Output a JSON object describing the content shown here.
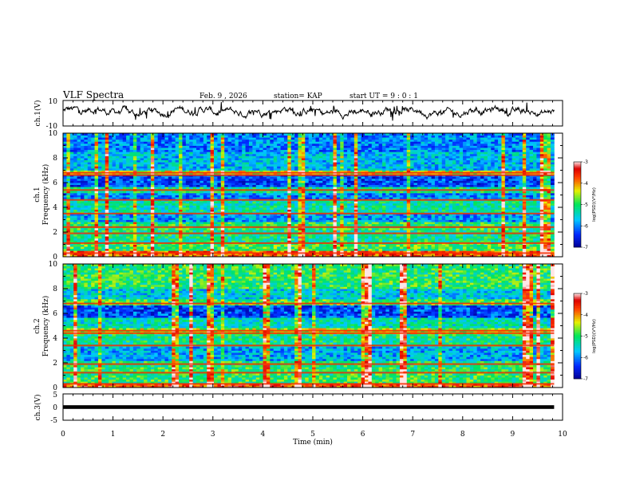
{
  "header": {
    "title": "VLF Spectra",
    "date": "Feb. 9 , 2026",
    "station": "station= KAP",
    "start": "start  UT =  9 : 0  : 1"
  },
  "chart_data": [
    {
      "type": "line",
      "panel": "ch1-waveform",
      "title": "VLF Spectra",
      "ylabel": "ch.1(V)",
      "xlim": [
        0,
        10
      ],
      "ylim": [
        -10,
        10
      ],
      "ytick_labels": [
        "10",
        "-10"
      ],
      "y_baseline": 1.5,
      "y_noise_amplitude": 4,
      "x_end": 9.83
    },
    {
      "type": "heatmap",
      "panel": "ch1-spectrogram",
      "ylabel": "ch.1",
      "ylabel2": "Frequency (kHz)",
      "xlim": [
        0,
        10
      ],
      "ylim": [
        0,
        10
      ],
      "ytick_labels": [
        "0",
        "2",
        "4",
        "6",
        "8",
        "10"
      ],
      "colorbar": {
        "label": "log(PSD)(V²/Hz)",
        "range": [
          -7,
          -3
        ],
        "tick_labels": [
          "-3",
          "-4",
          "-5",
          "-6",
          "-7"
        ]
      },
      "bands": [
        {
          "low": 0.0,
          "high": 0.5,
          "level": -3.8
        },
        {
          "low": 0.5,
          "high": 1.2,
          "level": -4.9
        },
        {
          "low": 1.2,
          "high": 2.2,
          "level": -5.2
        },
        {
          "low": 2.2,
          "high": 2.8,
          "level": -5.0
        },
        {
          "low": 2.8,
          "high": 3.5,
          "level": -5.9
        },
        {
          "low": 3.5,
          "high": 4.6,
          "level": -5.3
        },
        {
          "low": 4.6,
          "high": 5.2,
          "level": -6.0
        },
        {
          "low": 5.2,
          "high": 5.6,
          "level": -5.2
        },
        {
          "low": 5.6,
          "high": 6.6,
          "level": -6.3
        },
        {
          "low": 6.6,
          "high": 7.0,
          "level": -4.4
        },
        {
          "low": 7.0,
          "high": 8.5,
          "level": -5.7
        },
        {
          "low": 8.5,
          "high": 10.0,
          "level": -6.0
        }
      ],
      "lines_khz": [
        0.3,
        1.1,
        1.9,
        2.4,
        3.5,
        4.6,
        5.4,
        6.6,
        6.8
      ]
    },
    {
      "type": "heatmap",
      "panel": "ch2-spectrogram",
      "ylabel": "ch.2",
      "ylabel2": "Frequency (kHz)",
      "xlim": [
        0,
        10
      ],
      "ylim": [
        0,
        10
      ],
      "ytick_labels": [
        "0",
        "2",
        "4",
        "6",
        "8",
        "10"
      ],
      "colorbar": {
        "label": "log(PSD)(V²/Hz)",
        "range": [
          -7,
          -3
        ],
        "tick_labels": [
          "-3",
          "-4",
          "-5",
          "-6",
          "-7"
        ]
      },
      "bands": [
        {
          "low": 0.0,
          "high": 0.4,
          "level": -3.7
        },
        {
          "low": 0.4,
          "high": 1.6,
          "level": -5.0
        },
        {
          "low": 1.6,
          "high": 2.2,
          "level": -5.1
        },
        {
          "low": 2.2,
          "high": 3.4,
          "level": -5.8
        },
        {
          "low": 3.4,
          "high": 4.4,
          "level": -5.2
        },
        {
          "low": 4.4,
          "high": 4.8,
          "level": -4.5
        },
        {
          "low": 4.8,
          "high": 5.6,
          "level": -5.4
        },
        {
          "low": 5.6,
          "high": 6.6,
          "level": -6.3
        },
        {
          "low": 6.6,
          "high": 7.2,
          "level": -4.9
        },
        {
          "low": 7.2,
          "high": 8.0,
          "level": -5.6
        },
        {
          "low": 8.0,
          "high": 10.0,
          "level": -5.0
        }
      ],
      "lines_khz": [
        0.3,
        1.2,
        1.9,
        3.4,
        4.4,
        4.6,
        6.8
      ]
    },
    {
      "type": "line",
      "panel": "ch3-waveform",
      "ylabel": "ch.3(V)",
      "xlim": [
        0,
        10
      ],
      "ylim": [
        -5,
        5
      ],
      "ytick_labels": [
        "5",
        "0",
        "-5"
      ],
      "y_baseline": 0,
      "trace_thickness": 1.4,
      "x_end": 9.83
    }
  ],
  "xaxis": {
    "label": "Time  (min)",
    "tick_labels": [
      "0",
      "1",
      "2",
      "3",
      "4",
      "5",
      "6",
      "7",
      "8",
      "9",
      "10"
    ]
  }
}
